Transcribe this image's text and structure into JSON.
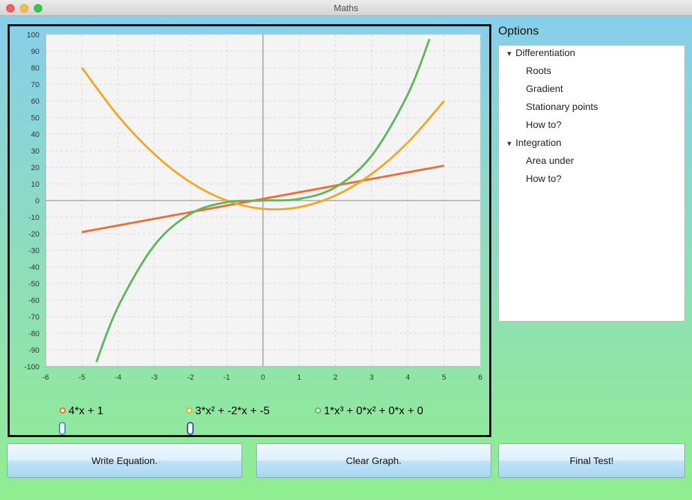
{
  "window": {
    "title": "Maths"
  },
  "chart_data": {
    "type": "line",
    "x_ticks": [
      -6,
      -5,
      -4,
      -3,
      -2,
      -1,
      0,
      1,
      2,
      3,
      4,
      5,
      6
    ],
    "y_ticks": [
      -100,
      -90,
      -80,
      -70,
      -60,
      -50,
      -40,
      -30,
      -20,
      -10,
      0,
      10,
      20,
      30,
      40,
      50,
      60,
      70,
      80,
      90,
      100
    ],
    "xlim": [
      -6,
      6
    ],
    "ylim": [
      -100,
      100
    ],
    "grid": true,
    "series": [
      {
        "name": "4*x + 1",
        "color": "#f06b2f",
        "x": [
          -5,
          -4,
          -3,
          -2,
          -1,
          0,
          1,
          2,
          3,
          4,
          5
        ],
        "y": [
          -19,
          -15,
          -11,
          -7,
          -3,
          1,
          5,
          9,
          13,
          17,
          21
        ]
      },
      {
        "name": "3*x² + -2*x + -5",
        "color": "#f5a623",
        "x": [
          -5,
          -4,
          -3,
          -2,
          -1,
          0,
          1,
          2,
          3,
          4,
          5
        ],
        "y": [
          80,
          51,
          28,
          11,
          0,
          -5,
          -4,
          3,
          16,
          35,
          60
        ]
      },
      {
        "name": "1*x³ + 0*x² + 0*x + 0",
        "color": "#5cb85c",
        "x": [
          -4.6,
          -4,
          -3,
          -2,
          -1,
          0,
          1,
          2,
          3,
          4,
          4.6
        ],
        "y": [
          -97.3,
          -64,
          -27,
          -8,
          -1,
          0,
          1,
          8,
          27,
          64,
          97.3
        ]
      }
    ]
  },
  "legend": {
    "items": [
      {
        "label": "4*x + 1",
        "color": "#f06b2f"
      },
      {
        "label": "3*x² + -2*x + -5",
        "color": "#f5a623"
      },
      {
        "label": "1*x³ + 0*x² + 0*x + 0",
        "color": "#5cb85c"
      }
    ]
  },
  "toggles": [
    {
      "color": "#4a90d9"
    },
    {
      "color": "#3b4fc4"
    }
  ],
  "options": {
    "title": "Options",
    "groups": [
      {
        "label": "Differentiation",
        "expanded": true,
        "children": [
          "Roots",
          "Gradient",
          "Stationary points",
          "How to?"
        ]
      },
      {
        "label": "Integration",
        "expanded": true,
        "children": [
          "Area under",
          "How to?"
        ]
      }
    ]
  },
  "buttons": {
    "write_equation": "Write Equation.",
    "clear_graph": "Clear Graph.",
    "final_test": "Final Test!"
  }
}
